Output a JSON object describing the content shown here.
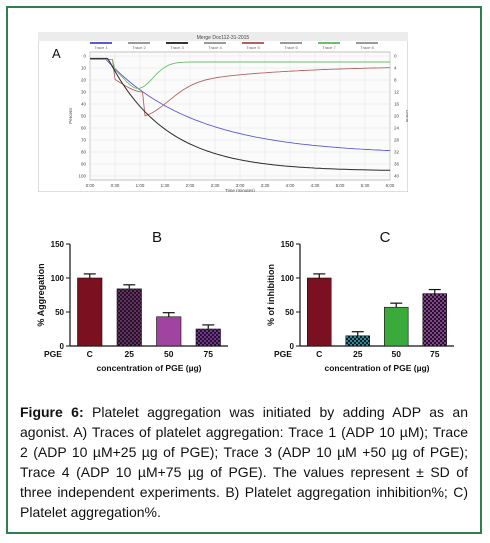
{
  "panel_a": {
    "label": "A",
    "window_title": "Merge Doc112-31-2015",
    "trace_tabs": [
      "Trace 1",
      "Trace 2",
      "Trace 3",
      "Trace 4",
      "Trace 5",
      "Trace 6",
      "Trace 7",
      "Trace 8"
    ],
    "y_left_ticks": [
      "0",
      "10",
      "20",
      "30",
      "40",
      "50",
      "60",
      "70",
      "80",
      "90",
      "100"
    ],
    "y_right_ticks": [
      "0",
      "4",
      "8",
      "12",
      "16",
      "20",
      "24",
      "28",
      "32",
      "36",
      "40"
    ],
    "x_ticks": [
      "0:00",
      "0:30",
      "1:00",
      "1:30",
      "2:00",
      "2:30",
      "3:00",
      "3:30",
      "4:00",
      "4:30",
      "5:00",
      "5:30",
      "6:00"
    ],
    "y_left_label": "Percent",
    "y_right_label": "Ohms",
    "x_label": "Time (minutes)",
    "colors": {
      "trace1": "#2b2b2b",
      "trace2": "#5a5ad6",
      "trace3": "#b46060",
      "trace4": "#6cbf6c"
    }
  },
  "chart_data": [
    {
      "type": "bar",
      "panel_label": "B",
      "ylabel": "% Aggregation",
      "xlabel": "concentration of PGE (µg)",
      "row_label": "PGE",
      "categories": [
        "C",
        "25",
        "50",
        "75"
      ],
      "values": [
        100,
        84,
        43,
        25
      ],
      "errors": [
        6,
        6,
        6,
        6
      ],
      "ylim": [
        0,
        150
      ],
      "yticks": [
        0,
        50,
        100,
        150
      ],
      "bar_colors": [
        "#7b1020",
        "#6b2a6b",
        "#a0449f",
        "#7a2ea0"
      ]
    },
    {
      "type": "bar",
      "panel_label": "C",
      "ylabel": "% of inhibition",
      "xlabel": "concentration of PGE (µg)",
      "row_label": "PGE",
      "categories": [
        "C",
        "25",
        "50",
        "75"
      ],
      "values": [
        100,
        15,
        57,
        77
      ],
      "errors": [
        6,
        6,
        6,
        6
      ],
      "ylim": [
        0,
        150
      ],
      "yticks": [
        0,
        50,
        100,
        150
      ],
      "bar_colors": [
        "#7b1020",
        "#2c8aa0",
        "#3aab3a",
        "#8a3e9a"
      ]
    }
  ],
  "caption": {
    "label": "Figure 6:",
    "text": " Platelet aggregation was initiated by adding ADP as an agonist. A) Traces of platelet aggregation: Trace 1 (ADP 10 µM); Trace 2 (ADP 10 µM+25 µg of PGE); Trace 3 (ADP 10 µM +50 µg of PGE); Trace 4 (ADP 10 µM+75 µg of PGE). The values represent ± SD of three independent experiments. B) Platelet aggregation inhibition%; C) Platelet aggregation%."
  }
}
